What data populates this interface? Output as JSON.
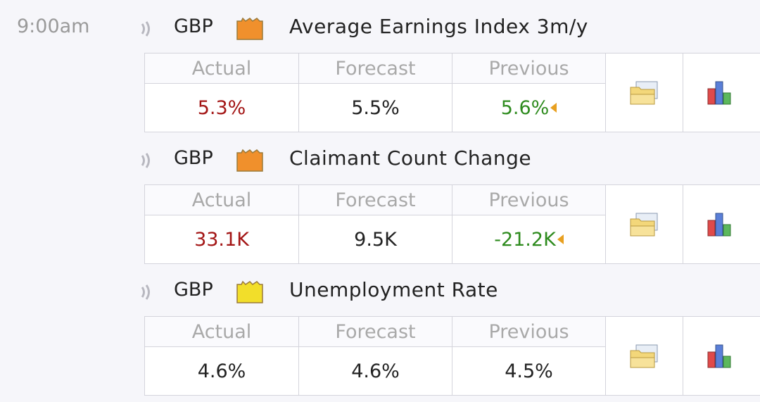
{
  "time": "9:00am",
  "columns": [
    "Actual",
    "Forecast",
    "Previous"
  ],
  "events": [
    {
      "currency": "GBP",
      "impact_color": "#f0902c",
      "title": "Average Earnings Index 3m/y",
      "actual": "5.3%",
      "actual_color": "#a31515",
      "forecast": "5.5%",
      "previous": "5.6%",
      "previous_color": "#2e8b1e",
      "previous_revised": true
    },
    {
      "currency": "GBP",
      "impact_color": "#f0902c",
      "title": "Claimant Count Change",
      "actual": "33.1K",
      "actual_color": "#a31515",
      "forecast": "9.5K",
      "previous": "-21.2K",
      "previous_color": "#2e8b1e",
      "previous_revised": true
    },
    {
      "currency": "GBP",
      "impact_color": "#f2de2a",
      "title": "Unemployment Rate",
      "actual": "4.6%",
      "actual_color": "#222222",
      "forecast": "4.6%",
      "previous": "4.5%",
      "previous_color": "#222222",
      "previous_revised": false
    }
  ]
}
